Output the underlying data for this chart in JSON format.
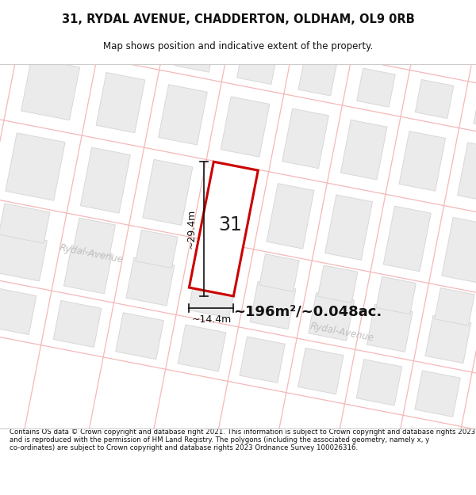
{
  "title_line1": "31, RYDAL AVENUE, CHADDERTON, OLDHAM, OL9 0RB",
  "title_line2": "Map shows position and indicative extent of the property.",
  "area_text": "~196m²/~0.048ac.",
  "plot_number": "31",
  "width_label": "~14.4m",
  "height_label": "~29.4m",
  "footer_text": "Contains OS data © Crown copyright and database right 2021. This information is subject to Crown copyright and database rights 2023 and is reproduced with the permission of HM Land Registry. The polygons (including the associated geometry, namely x, y co-ordinates) are subject to Crown copyright and database rights 2023 Ordnance Survey 100026316.",
  "map_bg_color": "#ffffff",
  "street_line_color": "#f5b8b8",
  "plot_fill_color": "#ffffff",
  "plot_edge_color": "#cc0000",
  "block_fill_color": "#ebebeb",
  "block_edge_color": "#d8d8d8",
  "street_label_color": "#cccccc",
  "dim_color": "#111111",
  "area_text_color": "#111111",
  "street_label1": "Rydal‑Avenue",
  "street_label2": "Rydal‑Avenue"
}
